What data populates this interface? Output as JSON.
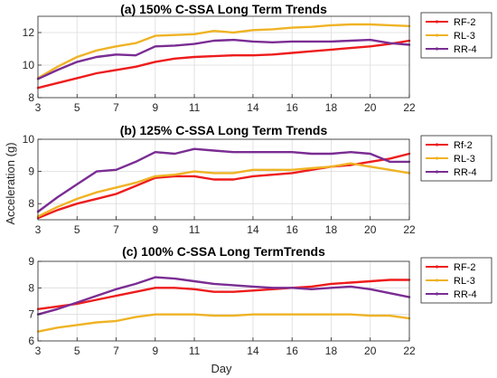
{
  "figure": {
    "xlabel": "Day",
    "ylabel": "Acceleration (g)"
  },
  "chart_data": [
    {
      "type": "line",
      "title": "(a) 150% C-SSA Long Term Trends",
      "xlabel": "",
      "ylabel": "",
      "xlim": [
        3,
        22
      ],
      "ylim": [
        8,
        13
      ],
      "xticks": [
        3,
        5,
        7,
        9,
        11,
        14,
        16,
        18,
        20,
        22
      ],
      "yticks": [
        8,
        10,
        12
      ],
      "grid": true,
      "legend_position": "outside-right",
      "series": [
        {
          "name": "RF-2",
          "color": "#ee1c1c",
          "x": [
            3,
            4,
            5,
            6,
            7,
            8,
            9,
            10,
            11,
            12,
            13,
            14,
            15,
            16,
            17,
            18,
            19,
            20,
            21,
            22
          ],
          "y": [
            8.6,
            8.9,
            9.2,
            9.5,
            9.7,
            9.9,
            10.2,
            10.4,
            10.5,
            10.55,
            10.6,
            10.6,
            10.65,
            10.75,
            10.85,
            10.95,
            11.05,
            11.15,
            11.3,
            11.5
          ]
        },
        {
          "name": "RL-3",
          "color": "#efb325",
          "x": [
            3,
            4,
            5,
            6,
            7,
            8,
            9,
            10,
            11,
            12,
            13,
            14,
            15,
            16,
            17,
            18,
            19,
            20,
            21,
            22
          ],
          "y": [
            9.2,
            9.9,
            10.5,
            10.9,
            11.15,
            11.35,
            11.8,
            11.85,
            11.9,
            12.1,
            12.0,
            12.15,
            12.2,
            12.3,
            12.35,
            12.45,
            12.5,
            12.5,
            12.45,
            12.4
          ]
        },
        {
          "name": "RR-4",
          "color": "#7a2d93",
          "x": [
            3,
            4,
            5,
            6,
            7,
            8,
            9,
            10,
            11,
            12,
            13,
            14,
            15,
            16,
            17,
            18,
            19,
            20,
            21,
            22
          ],
          "y": [
            9.15,
            9.7,
            10.2,
            10.5,
            10.65,
            10.6,
            11.15,
            11.2,
            11.3,
            11.5,
            11.55,
            11.45,
            11.4,
            11.45,
            11.45,
            11.45,
            11.5,
            11.55,
            11.35,
            11.25
          ]
        }
      ]
    },
    {
      "type": "line",
      "title": "(b) 125% C-SSA Long Term Trends",
      "xlabel": "",
      "ylabel": "",
      "xlim": [
        3,
        22
      ],
      "ylim": [
        7.5,
        10
      ],
      "xticks": [
        3,
        5,
        7,
        9,
        11,
        14,
        16,
        18,
        20,
        22
      ],
      "yticks": [
        8,
        9,
        10
      ],
      "grid": true,
      "legend_position": "outside-right",
      "series": [
        {
          "name": "Rf-2",
          "color": "#ee1c1c",
          "x": [
            3,
            4,
            5,
            6,
            7,
            8,
            9,
            10,
            11,
            12,
            13,
            14,
            15,
            16,
            17,
            18,
            19,
            20,
            21,
            22
          ],
          "y": [
            7.55,
            7.8,
            8.0,
            8.15,
            8.3,
            8.55,
            8.8,
            8.85,
            8.85,
            8.75,
            8.75,
            8.85,
            8.9,
            8.95,
            9.05,
            9.15,
            9.2,
            9.3,
            9.4,
            9.55
          ]
        },
        {
          "name": "RL-3",
          "color": "#efb325",
          "x": [
            3,
            4,
            5,
            6,
            7,
            8,
            9,
            10,
            11,
            12,
            13,
            14,
            15,
            16,
            17,
            18,
            19,
            20,
            21,
            22
          ],
          "y": [
            7.6,
            7.9,
            8.15,
            8.35,
            8.5,
            8.65,
            8.85,
            8.9,
            9.0,
            8.95,
            8.95,
            9.05,
            9.05,
            9.05,
            9.1,
            9.15,
            9.25,
            9.15,
            9.05,
            8.95
          ]
        },
        {
          "name": "RR-4",
          "color": "#7a2d93",
          "x": [
            3,
            4,
            5,
            6,
            7,
            8,
            9,
            10,
            11,
            12,
            13,
            14,
            15,
            16,
            17,
            18,
            19,
            20,
            21,
            22
          ],
          "y": [
            7.75,
            8.2,
            8.6,
            9.0,
            9.05,
            9.3,
            9.6,
            9.55,
            9.7,
            9.65,
            9.6,
            9.6,
            9.6,
            9.6,
            9.55,
            9.55,
            9.6,
            9.55,
            9.3,
            9.3
          ]
        }
      ]
    },
    {
      "type": "line",
      "title": "(c) 100% C-SSA Long TermTrends",
      "xlabel": "Day",
      "ylabel": "",
      "xlim": [
        3,
        22
      ],
      "ylim": [
        6,
        9
      ],
      "xticks": [
        3,
        5,
        7,
        9,
        11,
        14,
        16,
        18,
        20,
        22
      ],
      "yticks": [
        6,
        7,
        8,
        9
      ],
      "grid": true,
      "legend_position": "outside-right",
      "series": [
        {
          "name": "RF-2",
          "color": "#ee1c1c",
          "x": [
            3,
            4,
            5,
            6,
            7,
            8,
            9,
            10,
            11,
            12,
            13,
            14,
            15,
            16,
            17,
            18,
            19,
            20,
            21,
            22
          ],
          "y": [
            7.2,
            7.3,
            7.4,
            7.55,
            7.7,
            7.85,
            8.0,
            8.0,
            7.95,
            7.85,
            7.85,
            7.9,
            7.95,
            8.0,
            8.05,
            8.15,
            8.2,
            8.25,
            8.3,
            8.3
          ]
        },
        {
          "name": "RL-3",
          "color": "#efb325",
          "x": [
            3,
            4,
            5,
            6,
            7,
            8,
            9,
            10,
            11,
            12,
            13,
            14,
            15,
            16,
            17,
            18,
            19,
            20,
            21,
            22
          ],
          "y": [
            6.35,
            6.5,
            6.6,
            6.7,
            6.75,
            6.9,
            7.0,
            7.0,
            7.0,
            6.95,
            6.95,
            7.0,
            7.0,
            7.0,
            7.0,
            7.0,
            7.0,
            6.95,
            6.95,
            6.85
          ]
        },
        {
          "name": "RR-4",
          "color": "#7a2d93",
          "x": [
            3,
            4,
            5,
            6,
            7,
            8,
            9,
            10,
            11,
            12,
            13,
            14,
            15,
            16,
            17,
            18,
            19,
            20,
            21,
            22
          ],
          "y": [
            7.0,
            7.2,
            7.45,
            7.7,
            7.95,
            8.15,
            8.4,
            8.35,
            8.25,
            8.15,
            8.1,
            8.05,
            8.0,
            8.0,
            7.95,
            8.0,
            8.05,
            7.95,
            7.8,
            7.65
          ]
        }
      ]
    }
  ]
}
